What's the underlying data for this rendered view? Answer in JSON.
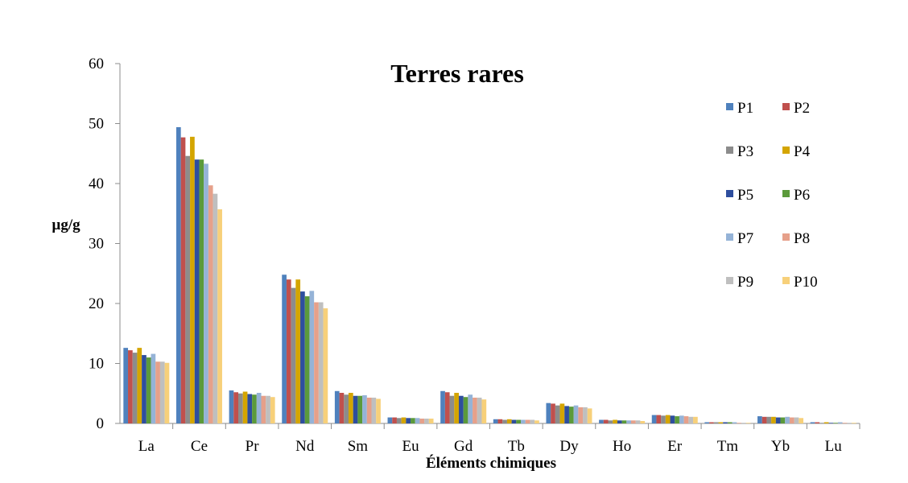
{
  "chart_data": {
    "type": "bar",
    "title": "Terres rares",
    "xlabel": "Éléments chimiques",
    "ylabel": "µg/g",
    "ylim": [
      0,
      60
    ],
    "yticks": [
      "0",
      "10",
      "20",
      "30",
      "40",
      "50",
      "60"
    ],
    "grid": false,
    "legend_position": "right",
    "categories": [
      "La",
      "Ce",
      "Pr",
      "Nd",
      "Sm",
      "Eu",
      "Gd",
      "Tb",
      "Dy",
      "Ho",
      "Er",
      "Tm",
      "Yb",
      "Lu"
    ],
    "series": [
      {
        "name": "P1",
        "color": "#4F81BD",
        "values": [
          12.6,
          49.4,
          5.5,
          24.8,
          5.4,
          1.0,
          5.4,
          0.7,
          3.4,
          0.6,
          1.4,
          0.2,
          1.2,
          0.2
        ]
      },
      {
        "name": "P2",
        "color": "#C0504D",
        "values": [
          12.2,
          47.7,
          5.2,
          24.0,
          5.1,
          1.0,
          5.2,
          0.7,
          3.3,
          0.6,
          1.4,
          0.2,
          1.1,
          0.2
        ]
      },
      {
        "name": "P3",
        "color": "#8C8C8C",
        "values": [
          11.8,
          44.6,
          5.0,
          22.6,
          4.8,
          0.9,
          4.6,
          0.6,
          3.0,
          0.5,
          1.3,
          0.2,
          1.1,
          0.1
        ]
      },
      {
        "name": "P4",
        "color": "#D4A500",
        "values": [
          12.6,
          47.8,
          5.3,
          24.0,
          5.1,
          1.0,
          5.1,
          0.7,
          3.3,
          0.6,
          1.4,
          0.2,
          1.1,
          0.2
        ]
      },
      {
        "name": "P5",
        "color": "#2E4E9E",
        "values": [
          11.4,
          44.0,
          4.9,
          22.0,
          4.6,
          0.9,
          4.6,
          0.6,
          2.9,
          0.5,
          1.3,
          0.2,
          1.0,
          0.1
        ]
      },
      {
        "name": "P6",
        "color": "#5B9A3B",
        "values": [
          11.0,
          44.0,
          4.8,
          21.2,
          4.6,
          0.9,
          4.4,
          0.6,
          2.8,
          0.5,
          1.2,
          0.2,
          1.0,
          0.1
        ]
      },
      {
        "name": "P7",
        "color": "#95B3D7",
        "values": [
          11.6,
          43.3,
          5.1,
          22.1,
          4.7,
          0.9,
          4.8,
          0.6,
          3.0,
          0.5,
          1.3,
          0.2,
          1.1,
          0.2
        ]
      },
      {
        "name": "P8",
        "color": "#E6A08A",
        "values": [
          10.3,
          39.7,
          4.6,
          20.2,
          4.3,
          0.8,
          4.3,
          0.6,
          2.7,
          0.5,
          1.2,
          0.1,
          1.0,
          0.1
        ]
      },
      {
        "name": "P9",
        "color": "#BFBFBF",
        "values": [
          10.3,
          38.3,
          4.6,
          20.2,
          4.3,
          0.8,
          4.3,
          0.6,
          2.7,
          0.5,
          1.1,
          0.1,
          1.0,
          0.1
        ]
      },
      {
        "name": "P10",
        "color": "#F7D07A",
        "values": [
          10.1,
          35.7,
          4.4,
          19.2,
          4.1,
          0.8,
          4.0,
          0.5,
          2.5,
          0.4,
          1.1,
          0.1,
          0.9,
          0.1
        ]
      }
    ]
  }
}
